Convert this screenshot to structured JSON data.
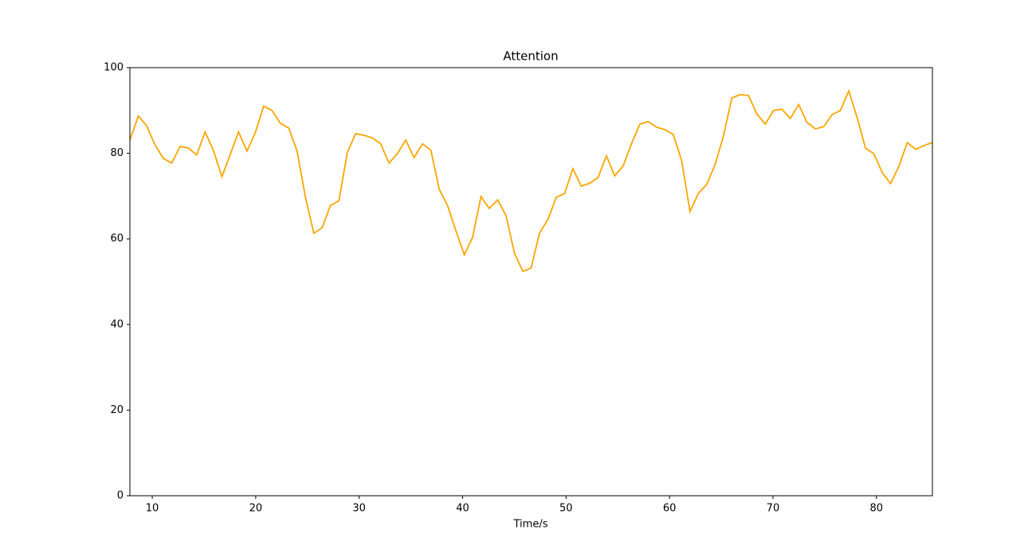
{
  "chart_data": {
    "type": "line",
    "title": "Attention",
    "x_label": "Time/s",
    "x": [
      7.84,
      8.65,
      9.46,
      10.26,
      11.07,
      11.88,
      12.69,
      13.5,
      14.3,
      15.11,
      15.92,
      16.73,
      17.54,
      18.34,
      19.15,
      19.96,
      20.77,
      21.58,
      22.38,
      23.19,
      24.0,
      24.81,
      25.62,
      26.42,
      27.23,
      28.04,
      28.85,
      29.66,
      30.46,
      31.27,
      32.08,
      32.89,
      33.7,
      34.5,
      35.31,
      36.12,
      36.93,
      37.74,
      38.54,
      39.35,
      40.16,
      40.97,
      41.78,
      42.58,
      43.39,
      44.2,
      45.01,
      45.82,
      46.62,
      47.43,
      48.24,
      49.05,
      49.86,
      50.66,
      51.47,
      52.28,
      53.09,
      53.9,
      54.7,
      55.51,
      56.32,
      57.13,
      57.94,
      58.74,
      59.55,
      60.36,
      61.17,
      61.98,
      62.78,
      63.59,
      64.4,
      65.21,
      66.02,
      66.82,
      67.63,
      68.44,
      69.25,
      70.06,
      70.86,
      71.67,
      72.48,
      73.29,
      74.1,
      74.9,
      75.71,
      76.52,
      77.33,
      78.14,
      78.94,
      79.75,
      80.56,
      81.37,
      82.18,
      82.98,
      83.79,
      84.6,
      85.41
    ],
    "series": [
      {
        "name": "Attention",
        "color": "#ffa500",
        "values": [
          83.1,
          88.7,
          86.4,
          82,
          78.8,
          77.7,
          81.6,
          81.2,
          79.6,
          85,
          80.6,
          74.5,
          79.7,
          85,
          80.5,
          84.8,
          91,
          90,
          87,
          85.9,
          80.5,
          69.7,
          61.3,
          62.6,
          67.8,
          68.9,
          80.1,
          84.6,
          84.2,
          83.6,
          82.2,
          77.7,
          79.9,
          83.1,
          79,
          82.2,
          80.7,
          71.6,
          67.8,
          61.9,
          56.3,
          60.4,
          69.9,
          67.1,
          69.1,
          65.4,
          56.7,
          52.4,
          53.2,
          61.3,
          64.5,
          69.7,
          70.6,
          76.4,
          72.3,
          73,
          74.3,
          79.4,
          74.7,
          77,
          82.2,
          86.8,
          87.4,
          86.1,
          85.5,
          84.4,
          78.3,
          66.4,
          70.6,
          72.7,
          77.3,
          84,
          92.9,
          93.7,
          93.5,
          89.2,
          86.8,
          90,
          90.3,
          88.1,
          91.4,
          87.2,
          85.7,
          86.2,
          89,
          90,
          94.6,
          88.3,
          81.2,
          79.9,
          75.5,
          72.9,
          77,
          82.5,
          80.9,
          81.8,
          82.5
        ]
      }
    ],
    "xlim": [
      7.84,
      85.41
    ],
    "xticks": [
      10,
      20,
      30,
      40,
      50,
      60,
      70,
      80
    ],
    "ylim": [
      0,
      100
    ],
    "yticks": [
      0,
      20,
      40,
      60,
      80,
      100
    ],
    "grid": false
  }
}
